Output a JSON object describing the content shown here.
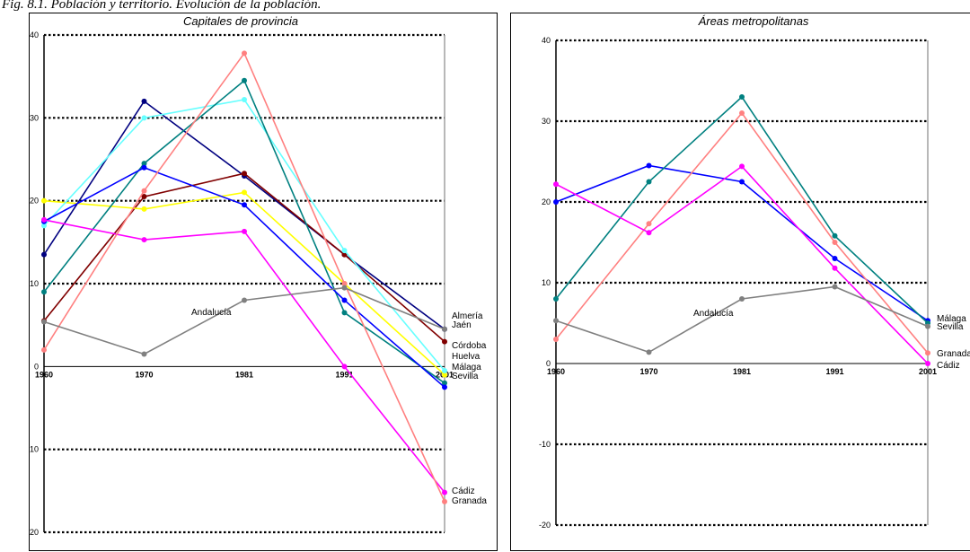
{
  "caption": "Fig. 8.1. Población y territorio. Evolución de la población.",
  "chart_data": [
    {
      "type": "line",
      "title": "Capitales de provincia",
      "categories": [
        "1960",
        "1970",
        "1981",
        "1991",
        "2001"
      ],
      "ylim": [
        -20,
        40
      ],
      "yticks": [
        -20,
        -10,
        0,
        10,
        20,
        30,
        40
      ],
      "grid": true,
      "series": [
        {
          "name": "Almería",
          "color": "#000080",
          "values": [
            13.5,
            32,
            23,
            13.5,
            4.5
          ]
        },
        {
          "name": "Jaén",
          "color": "#800000",
          "values": [
            5.5,
            20.5,
            23.3,
            13.5,
            3
          ]
        },
        {
          "name": "Córdoba",
          "color": "#ffff00",
          "values": [
            20,
            19,
            21,
            10,
            -1
          ]
        },
        {
          "name": "Huelva",
          "color": "#66ffff",
          "values": [
            17,
            30,
            32.2,
            14,
            -0.5
          ]
        },
        {
          "name": "Málaga",
          "color": "#008080",
          "values": [
            9,
            24.5,
            34.5,
            6.5,
            -2
          ]
        },
        {
          "name": "Sevilla",
          "color": "#0000ff",
          "values": [
            17.5,
            24,
            19.5,
            8,
            -2.5
          ]
        },
        {
          "name": "Cádiz",
          "color": "#ff00ff",
          "values": [
            17.7,
            15.3,
            16.3,
            0,
            -15.2
          ]
        },
        {
          "name": "Granada",
          "color": "#ff8080",
          "values": [
            2,
            21.2,
            37.8,
            10,
            -16.3
          ]
        },
        {
          "name": "Andalucía",
          "color": "#808080",
          "values": [
            5.4,
            1.5,
            8,
            9.5,
            4.5
          ]
        }
      ]
    },
    {
      "type": "line",
      "title": "Áreas metropolitanas",
      "categories": [
        "1960",
        "1970",
        "1981",
        "1991",
        "2001"
      ],
      "ylim": [
        -20,
        40
      ],
      "yticks": [
        -20,
        -10,
        0,
        10,
        20,
        30,
        40
      ],
      "grid": true,
      "series": [
        {
          "name": "Málaga",
          "color": "#0000ff",
          "values": [
            20,
            24.5,
            22.5,
            13,
            5.3
          ]
        },
        {
          "name": "Sevilla",
          "color": "#008080",
          "values": [
            8,
            22.5,
            33,
            15.8,
            5
          ]
        },
        {
          "name": "Granada",
          "color": "#ff8080",
          "values": [
            3,
            17.3,
            31,
            15,
            1.3
          ]
        },
        {
          "name": "Cádiz",
          "color": "#ff00ff",
          "values": [
            22.2,
            16.2,
            24.4,
            11.8,
            0
          ]
        },
        {
          "name": "Andalucía",
          "color": "#808080",
          "values": [
            5.3,
            1.4,
            8,
            9.5,
            4.6
          ]
        }
      ]
    }
  ]
}
